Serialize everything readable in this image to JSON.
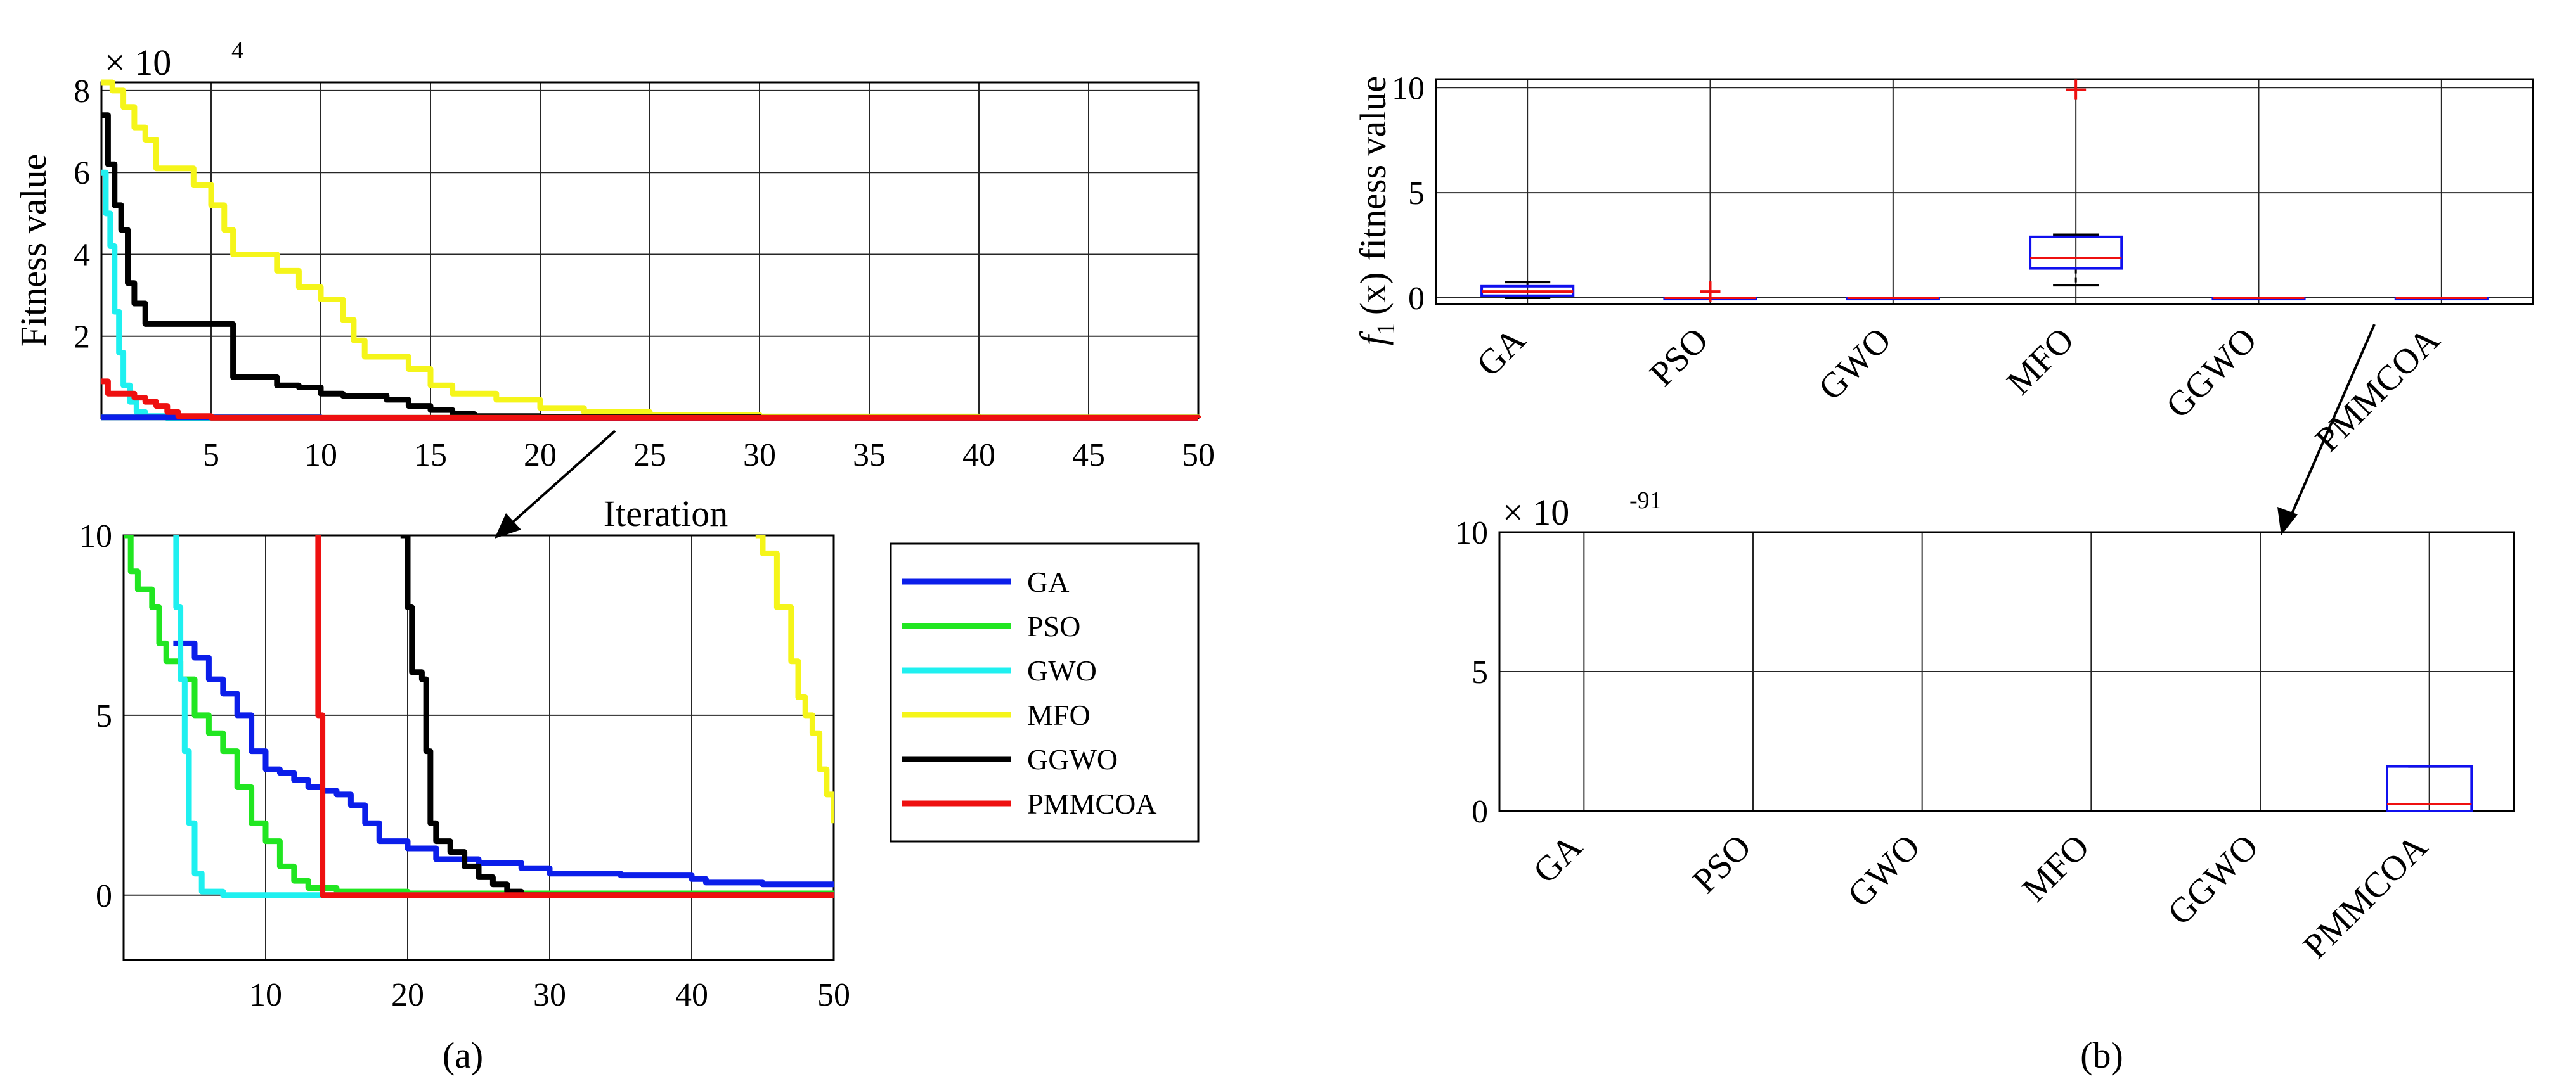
{
  "captions": {
    "a": "(a)",
    "b": "(b)"
  },
  "colors": {
    "GA": "#0b1eea",
    "PSO": "#21e621",
    "GWO": "#1ff0f0",
    "MFO": "#f5f51a",
    "GGWO": "#000000",
    "PMMCOA": "#ee1010",
    "box": "#1010ee",
    "median": "#ee1010",
    "outlier": "#ee1010",
    "whisker": "#000000",
    "grid": "#262626"
  },
  "chart_data": [
    {
      "id": "conv-top",
      "type": "line",
      "ylabel": "Fitness value",
      "xlabel": "Iteration",
      "exponent_label": "× 10",
      "exponent": "4",
      "xlim": [
        0,
        50
      ],
      "ylim": [
        0,
        8.2
      ],
      "xticks": [
        "5",
        "10",
        "15",
        "20",
        "25",
        "30",
        "35",
        "40",
        "45",
        "50"
      ],
      "yticks": [
        "2",
        "4",
        "6",
        "8"
      ],
      "series": [
        {
          "name": "MFO",
          "points": [
            [
              0,
              8.2
            ],
            [
              0.5,
              8
            ],
            [
              1,
              7.6
            ],
            [
              1.5,
              7.1
            ],
            [
              2,
              6.8
            ],
            [
              2.5,
              6.1
            ],
            [
              4,
              6.1
            ],
            [
              4.2,
              5.7
            ],
            [
              5,
              5.2
            ],
            [
              5.6,
              4.6
            ],
            [
              6,
              4.0
            ],
            [
              7.5,
              4.0
            ],
            [
              8,
              3.6
            ],
            [
              9,
              3.2
            ],
            [
              10,
              2.9
            ],
            [
              11,
              2.4
            ],
            [
              11.5,
              1.9
            ],
            [
              12,
              1.5
            ],
            [
              14,
              1.2
            ],
            [
              15,
              0.8
            ],
            [
              16,
              0.6
            ],
            [
              18,
              0.45
            ],
            [
              20,
              0.25
            ],
            [
              22,
              0.15
            ],
            [
              25,
              0.08
            ],
            [
              30,
              0.04
            ],
            [
              40,
              0.02
            ],
            [
              50,
              0.01
            ]
          ]
        },
        {
          "name": "GGWO",
          "points": [
            [
              0,
              7.4
            ],
            [
              0.3,
              6.2
            ],
            [
              0.6,
              5.2
            ],
            [
              0.9,
              4.6
            ],
            [
              1.2,
              3.3
            ],
            [
              1.5,
              2.8
            ],
            [
              2,
              2.3
            ],
            [
              5,
              2.3
            ],
            [
              6,
              1.0
            ],
            [
              7.5,
              1.0
            ],
            [
              8,
              0.8
            ],
            [
              9,
              0.75
            ],
            [
              10,
              0.6
            ],
            [
              11,
              0.55
            ],
            [
              13,
              0.45
            ],
            [
              14,
              0.3
            ],
            [
              15,
              0.2
            ],
            [
              16,
              0.1
            ],
            [
              17,
              0.05
            ],
            [
              20,
              0.03
            ],
            [
              30,
              0.01
            ],
            [
              50,
              0.0
            ]
          ]
        },
        {
          "name": "GWO",
          "points": [
            [
              0,
              6.0
            ],
            [
              0.2,
              5.0
            ],
            [
              0.4,
              4.2
            ],
            [
              0.6,
              2.6
            ],
            [
              0.8,
              1.6
            ],
            [
              1.0,
              0.8
            ],
            [
              1.3,
              0.4
            ],
            [
              1.6,
              0.15
            ],
            [
              2,
              0.05
            ],
            [
              3,
              0.0
            ],
            [
              50,
              0.0
            ]
          ]
        },
        {
          "name": "PSO",
          "points": [
            [
              0,
              0.02
            ],
            [
              10,
              0.01
            ],
            [
              50,
              0.0
            ]
          ]
        },
        {
          "name": "GA",
          "points": [
            [
              0,
              0.02
            ],
            [
              10,
              0.005
            ],
            [
              50,
              0.003
            ]
          ]
        },
        {
          "name": "PMMCOA",
          "points": [
            [
              0,
              0.9
            ],
            [
              0.3,
              0.6
            ],
            [
              1.2,
              0.6
            ],
            [
              1.5,
              0.5
            ],
            [
              2,
              0.4
            ],
            [
              2.5,
              0.3
            ],
            [
              3,
              0.15
            ],
            [
              3.5,
              0.05
            ],
            [
              5,
              0.01
            ],
            [
              50,
              0.0
            ]
          ]
        }
      ]
    },
    {
      "id": "conv-zoom",
      "type": "line",
      "xlim": [
        0,
        50
      ],
      "ylim": [
        -1.8,
        10
      ],
      "xticks": [
        "10",
        "20",
        "30",
        "40",
        "50"
      ],
      "yticks": [
        "0",
        "5",
        "10"
      ],
      "series": [
        {
          "name": "GA",
          "points": [
            [
              3.5,
              7.0
            ],
            [
              4,
              7.0
            ],
            [
              5,
              6.6
            ],
            [
              6,
              6.0
            ],
            [
              7,
              5.6
            ],
            [
              8,
              5.0
            ],
            [
              9,
              4.0
            ],
            [
              10,
              3.5
            ],
            [
              11,
              3.4
            ],
            [
              12,
              3.2
            ],
            [
              13,
              3.0
            ],
            [
              14,
              2.9
            ],
            [
              15,
              2.8
            ],
            [
              16,
              2.5
            ],
            [
              17,
              2.0
            ],
            [
              18,
              1.5
            ],
            [
              20,
              1.3
            ],
            [
              22,
              1.0
            ],
            [
              25,
              0.9
            ],
            [
              28,
              0.75
            ],
            [
              30,
              0.6
            ],
            [
              35,
              0.55
            ],
            [
              40,
              0.45
            ],
            [
              41,
              0.35
            ],
            [
              45,
              0.3
            ],
            [
              50,
              0.25
            ]
          ]
        },
        {
          "name": "PSO",
          "points": [
            [
              0,
              10.0
            ],
            [
              0.5,
              9.0
            ],
            [
              1,
              8.5
            ],
            [
              2,
              8.0
            ],
            [
              2.5,
              7.0
            ],
            [
              3,
              6.5
            ],
            [
              4,
              6.0
            ],
            [
              5,
              5.0
            ],
            [
              6,
              4.5
            ],
            [
              7,
              4.0
            ],
            [
              8,
              3.0
            ],
            [
              9,
              2.0
            ],
            [
              10,
              1.5
            ],
            [
              11,
              0.8
            ],
            [
              12,
              0.4
            ],
            [
              13,
              0.2
            ],
            [
              15,
              0.1
            ],
            [
              20,
              0.05
            ],
            [
              50,
              0.0
            ]
          ]
        },
        {
          "name": "GWO",
          "points": [
            [
              3.5,
              10.0
            ],
            [
              3.7,
              8.0
            ],
            [
              4,
              6.0
            ],
            [
              4.3,
              4.0
            ],
            [
              4.6,
              2.0
            ],
            [
              5,
              0.6
            ],
            [
              5.5,
              0.1
            ],
            [
              7,
              0.0
            ],
            [
              50,
              0.0
            ]
          ]
        },
        {
          "name": "MFO",
          "points": [
            [
              44.5,
              10.0
            ],
            [
              45,
              9.5
            ],
            [
              46,
              8.0
            ],
            [
              47,
              6.5
            ],
            [
              47.5,
              5.5
            ],
            [
              48,
              5.0
            ],
            [
              48.5,
              4.5
            ],
            [
              49,
              3.5
            ],
            [
              49.5,
              2.8
            ],
            [
              50,
              2.0
            ]
          ]
        },
        {
          "name": "GGWO",
          "points": [
            [
              19.5,
              10.0
            ],
            [
              20,
              8.0
            ],
            [
              20.3,
              6.2
            ],
            [
              21,
              6.0
            ],
            [
              21.3,
              4.0
            ],
            [
              21.6,
              2.0
            ],
            [
              22,
              1.5
            ],
            [
              23,
              1.2
            ],
            [
              24,
              0.8
            ],
            [
              25,
              0.5
            ],
            [
              26,
              0.3
            ],
            [
              27,
              0.1
            ],
            [
              28,
              0.0
            ],
            [
              50,
              0.0
            ]
          ]
        },
        {
          "name": "PMMCOA",
          "points": [
            [
              13.5,
              10.0
            ],
            [
              13.7,
              5.0
            ],
            [
              14,
              0.0
            ],
            [
              50,
              0.0
            ]
          ]
        }
      ]
    },
    {
      "id": "box-top",
      "type": "box",
      "ylabel": "fitness value",
      "ylabel_func": "f",
      "ylabel_sub": "1",
      "ylabel_arg": "(x)",
      "ylim": [
        -0.3,
        10.4
      ],
      "yticks": [
        "0",
        "5",
        "10"
      ],
      "categories": [
        "GA",
        "PSO",
        "GWO",
        "MFO",
        "GGWO",
        "PMMCOA"
      ],
      "boxes": [
        {
          "q1": 0.1,
          "med": 0.3,
          "q3": 0.55,
          "wlo": 0.0,
          "whi": 0.75,
          "outliers": []
        },
        {
          "q1": 0.0,
          "med": 0.0,
          "q3": 0.0,
          "wlo": 0.0,
          "whi": 0.0,
          "outliers": [
            0.3
          ]
        },
        {
          "q1": 0.0,
          "med": 0.0,
          "q3": 0.0,
          "wlo": 0.0,
          "whi": 0.0,
          "outliers": []
        },
        {
          "q1": 1.4,
          "med": 1.9,
          "q3": 2.9,
          "wlo": 0.6,
          "whi": 3.0,
          "outliers": [
            9.9
          ]
        },
        {
          "q1": 0.0,
          "med": 0.0,
          "q3": 0.0,
          "wlo": 0.0,
          "whi": 0.0,
          "outliers": []
        },
        {
          "q1": 0.0,
          "med": 0.0,
          "q3": 0.0,
          "wlo": 0.0,
          "whi": 0.0,
          "outliers": []
        }
      ]
    },
    {
      "id": "box-zoom",
      "type": "box",
      "exponent_label": "× 10",
      "exponent": "-91",
      "ylim": [
        0,
        10
      ],
      "yticks": [
        "0",
        "5",
        "10"
      ],
      "categories": [
        "GA",
        "PSO",
        "GWO",
        "MFO",
        "GGWO",
        "PMMCOA"
      ],
      "boxes": [
        null,
        null,
        null,
        null,
        null,
        {
          "q1": 0.0,
          "med": 0.25,
          "q3": 1.6,
          "wlo": 0.0,
          "whi": 1.6,
          "outliers": []
        }
      ]
    }
  ],
  "legend": [
    "GA",
    "PSO",
    "GWO",
    "MFO",
    "GGWO",
    "PMMCOA"
  ]
}
